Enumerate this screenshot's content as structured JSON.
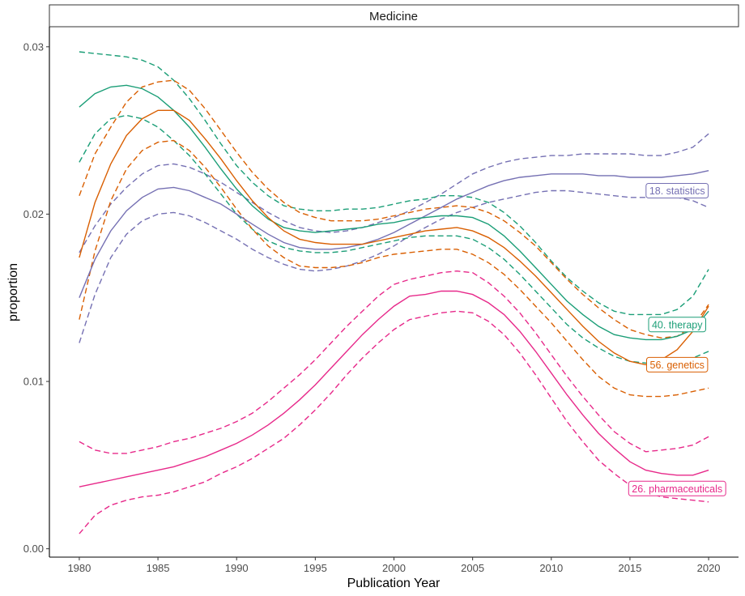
{
  "chart_data": {
    "type": "line",
    "panel_title": "Medicine",
    "xlabel": "Publication Year",
    "ylabel": "proportion",
    "xlim": [
      1978.1,
      2021.9
    ],
    "ylim": [
      -0.0005,
      0.0312
    ],
    "xticks": [
      1980,
      1985,
      1990,
      1995,
      2000,
      2005,
      2010,
      2015,
      2020
    ],
    "yticks": [
      0.0,
      0.01,
      0.02,
      0.03
    ],
    "ytick_labels": [
      "0.00",
      "0.01",
      "0.02",
      "0.03"
    ],
    "grid": false,
    "series": [
      {
        "name": "18. statistics",
        "color": "#7570b3",
        "label_x": 2018.0,
        "label_y": 0.0214,
        "x": [
          1980,
          1981,
          1982,
          1983,
          1984,
          1985,
          1986,
          1987,
          1988,
          1989,
          1990,
          1991,
          1992,
          1993,
          1994,
          1995,
          1996,
          1997,
          1998,
          1999,
          2000,
          2001,
          2002,
          2003,
          2004,
          2005,
          2006,
          2007,
          2008,
          2009,
          2010,
          2011,
          2012,
          2013,
          2014,
          2015,
          2016,
          2017,
          2018,
          2019,
          2020
        ],
        "y": [
          0.015,
          0.0173,
          0.019,
          0.0202,
          0.021,
          0.0215,
          0.0216,
          0.0214,
          0.021,
          0.0206,
          0.02,
          0.0194,
          0.0188,
          0.0183,
          0.018,
          0.0179,
          0.0179,
          0.018,
          0.0182,
          0.0185,
          0.0189,
          0.0194,
          0.0199,
          0.0204,
          0.0209,
          0.0213,
          0.0217,
          0.022,
          0.0222,
          0.0223,
          0.0224,
          0.0224,
          0.0224,
          0.0223,
          0.0223,
          0.0222,
          0.0222,
          0.0222,
          0.0223,
          0.0224,
          0.0226
        ],
        "lower": [
          0.0123,
          0.0152,
          0.0174,
          0.0188,
          0.0196,
          0.02,
          0.0201,
          0.0199,
          0.0195,
          0.019,
          0.0185,
          0.0179,
          0.0174,
          0.017,
          0.0167,
          0.0166,
          0.0167,
          0.0169,
          0.0172,
          0.0176,
          0.0181,
          0.0187,
          0.0192,
          0.0197,
          0.0201,
          0.0204,
          0.0207,
          0.0209,
          0.0211,
          0.0213,
          0.0214,
          0.0214,
          0.0213,
          0.0212,
          0.0211,
          0.021,
          0.021,
          0.021,
          0.021,
          0.0208,
          0.0204
        ],
        "upper": [
          0.0177,
          0.0193,
          0.0206,
          0.0216,
          0.0224,
          0.0229,
          0.023,
          0.0228,
          0.0224,
          0.0219,
          0.0213,
          0.0207,
          0.0201,
          0.0196,
          0.0192,
          0.019,
          0.0189,
          0.019,
          0.0192,
          0.0195,
          0.0198,
          0.0202,
          0.0207,
          0.0212,
          0.0218,
          0.0224,
          0.0228,
          0.0231,
          0.0233,
          0.0234,
          0.0235,
          0.0235,
          0.0236,
          0.0236,
          0.0236,
          0.0236,
          0.0235,
          0.0235,
          0.0237,
          0.024,
          0.0248
        ]
      },
      {
        "name": "40. therapy",
        "color": "#1b9e77",
        "label_x": 2018.0,
        "label_y": 0.0134,
        "x": [
          1980,
          1981,
          1982,
          1983,
          1984,
          1985,
          1986,
          1987,
          1988,
          1989,
          1990,
          1991,
          1992,
          1993,
          1994,
          1995,
          1996,
          1997,
          1998,
          1999,
          2000,
          2001,
          2002,
          2003,
          2004,
          2005,
          2006,
          2007,
          2008,
          2009,
          2010,
          2011,
          2012,
          2013,
          2014,
          2015,
          2016,
          2017,
          2018,
          2019,
          2020
        ],
        "y": [
          0.0264,
          0.0272,
          0.0276,
          0.0277,
          0.0275,
          0.027,
          0.0262,
          0.0252,
          0.024,
          0.0227,
          0.0215,
          0.0205,
          0.0197,
          0.0192,
          0.019,
          0.0189,
          0.019,
          0.0191,
          0.0192,
          0.0194,
          0.0195,
          0.0197,
          0.0198,
          0.0199,
          0.0199,
          0.0198,
          0.0194,
          0.0187,
          0.0178,
          0.0168,
          0.0158,
          0.0148,
          0.014,
          0.0133,
          0.0128,
          0.0126,
          0.0125,
          0.0125,
          0.0127,
          0.0131,
          0.0142
        ],
        "lower": [
          0.0231,
          0.0248,
          0.0257,
          0.0259,
          0.0257,
          0.0252,
          0.0244,
          0.0235,
          0.0224,
          0.0212,
          0.02,
          0.0191,
          0.0184,
          0.018,
          0.0178,
          0.0177,
          0.0177,
          0.0178,
          0.018,
          0.0182,
          0.0184,
          0.0186,
          0.0187,
          0.0187,
          0.0187,
          0.0185,
          0.018,
          0.0173,
          0.0164,
          0.0154,
          0.0144,
          0.0134,
          0.0126,
          0.012,
          0.0115,
          0.0112,
          0.0111,
          0.0111,
          0.0112,
          0.0114,
          0.0118
        ],
        "upper": [
          0.0297,
          0.0296,
          0.0295,
          0.0294,
          0.0292,
          0.0288,
          0.028,
          0.0269,
          0.0256,
          0.0242,
          0.0229,
          0.0219,
          0.0211,
          0.0205,
          0.0203,
          0.0202,
          0.0202,
          0.0203,
          0.0203,
          0.0204,
          0.0206,
          0.0208,
          0.0209,
          0.0211,
          0.0211,
          0.021,
          0.0207,
          0.0201,
          0.0193,
          0.0183,
          0.0172,
          0.0162,
          0.0154,
          0.0147,
          0.0142,
          0.014,
          0.014,
          0.014,
          0.0143,
          0.0151,
          0.0167
        ]
      },
      {
        "name": "56. genetics",
        "color": "#d95f02",
        "label_x": 2018.0,
        "label_y": 0.011,
        "x": [
          1980,
          1981,
          1982,
          1983,
          1984,
          1985,
          1986,
          1987,
          1988,
          1989,
          1990,
          1991,
          1992,
          1993,
          1994,
          1995,
          1996,
          1997,
          1998,
          1999,
          2000,
          2001,
          2002,
          2003,
          2004,
          2005,
          2006,
          2007,
          2008,
          2009,
          2010,
          2011,
          2012,
          2013,
          2014,
          2015,
          2016,
          2017,
          2018,
          2019,
          2020
        ],
        "y": [
          0.0174,
          0.0207,
          0.023,
          0.0247,
          0.0257,
          0.0262,
          0.0262,
          0.0256,
          0.0245,
          0.0233,
          0.022,
          0.0208,
          0.0198,
          0.019,
          0.0185,
          0.0183,
          0.0182,
          0.0182,
          0.0182,
          0.0184,
          0.0186,
          0.0188,
          0.019,
          0.0191,
          0.0192,
          0.019,
          0.0186,
          0.018,
          0.0172,
          0.0163,
          0.0153,
          0.0143,
          0.0133,
          0.0124,
          0.0117,
          0.0112,
          0.011,
          0.0113,
          0.0119,
          0.013,
          0.0145
        ],
        "lower": [
          0.0137,
          0.0178,
          0.0208,
          0.0227,
          0.0238,
          0.0243,
          0.0244,
          0.0238,
          0.0228,
          0.0216,
          0.0203,
          0.0191,
          0.0181,
          0.0174,
          0.0169,
          0.0168,
          0.0168,
          0.0169,
          0.0171,
          0.0174,
          0.0176,
          0.0177,
          0.0178,
          0.0179,
          0.0179,
          0.0176,
          0.0171,
          0.0164,
          0.0155,
          0.0145,
          0.0135,
          0.0124,
          0.0113,
          0.0103,
          0.0096,
          0.0092,
          0.0091,
          0.0091,
          0.0092,
          0.0094,
          0.0096
        ],
        "upper": [
          0.0211,
          0.0236,
          0.0252,
          0.0267,
          0.0276,
          0.0279,
          0.028,
          0.0274,
          0.0263,
          0.025,
          0.0237,
          0.0225,
          0.0215,
          0.0207,
          0.0201,
          0.0198,
          0.0196,
          0.0196,
          0.0196,
          0.0197,
          0.0199,
          0.0201,
          0.0203,
          0.0204,
          0.0205,
          0.0204,
          0.0201,
          0.0196,
          0.0189,
          0.0181,
          0.0171,
          0.0161,
          0.0152,
          0.0144,
          0.0137,
          0.0131,
          0.0128,
          0.0126,
          0.0127,
          0.0133,
          0.0146
        ]
      },
      {
        "name": "26. pharmaceuticals",
        "color": "#e7298a",
        "label_x": 2018.0,
        "label_y": 0.0036,
        "x": [
          1980,
          1981,
          1982,
          1983,
          1984,
          1985,
          1986,
          1987,
          1988,
          1989,
          1990,
          1991,
          1992,
          1993,
          1994,
          1995,
          1996,
          1997,
          1998,
          1999,
          2000,
          2001,
          2002,
          2003,
          2004,
          2005,
          2006,
          2007,
          2008,
          2009,
          2010,
          2011,
          2012,
          2013,
          2014,
          2015,
          2016,
          2017,
          2018,
          2019,
          2020
        ],
        "y": [
          0.0037,
          0.0039,
          0.0041,
          0.0043,
          0.0045,
          0.0047,
          0.0049,
          0.0052,
          0.0055,
          0.0059,
          0.0063,
          0.0068,
          0.0074,
          0.0081,
          0.0089,
          0.0098,
          0.0108,
          0.0118,
          0.0128,
          0.0137,
          0.0145,
          0.0151,
          0.0152,
          0.0154,
          0.0154,
          0.0152,
          0.0147,
          0.014,
          0.013,
          0.0118,
          0.0105,
          0.0092,
          0.008,
          0.0069,
          0.006,
          0.0052,
          0.0047,
          0.0045,
          0.0044,
          0.0044,
          0.0047
        ],
        "lower": [
          0.0009,
          0.002,
          0.0026,
          0.0029,
          0.0031,
          0.0032,
          0.0034,
          0.0037,
          0.004,
          0.0045,
          0.0049,
          0.0054,
          0.006,
          0.0066,
          0.0074,
          0.0083,
          0.0093,
          0.0104,
          0.0114,
          0.0123,
          0.0131,
          0.0137,
          0.0139,
          0.0141,
          0.0142,
          0.0141,
          0.0136,
          0.0128,
          0.0117,
          0.0104,
          0.009,
          0.0076,
          0.0064,
          0.0053,
          0.0045,
          0.0038,
          0.0034,
          0.0031,
          0.003,
          0.0029,
          0.0028
        ],
        "upper": [
          0.0064,
          0.0059,
          0.0057,
          0.0057,
          0.0059,
          0.0061,
          0.0064,
          0.0066,
          0.0069,
          0.0072,
          0.0076,
          0.0081,
          0.0088,
          0.0096,
          0.0104,
          0.0113,
          0.0123,
          0.0133,
          0.0142,
          0.0151,
          0.0158,
          0.0161,
          0.0163,
          0.0165,
          0.0166,
          0.0165,
          0.0159,
          0.0151,
          0.0141,
          0.0129,
          0.0116,
          0.0103,
          0.0091,
          0.008,
          0.007,
          0.0063,
          0.0058,
          0.0059,
          0.006,
          0.0062,
          0.0067
        ]
      }
    ]
  }
}
